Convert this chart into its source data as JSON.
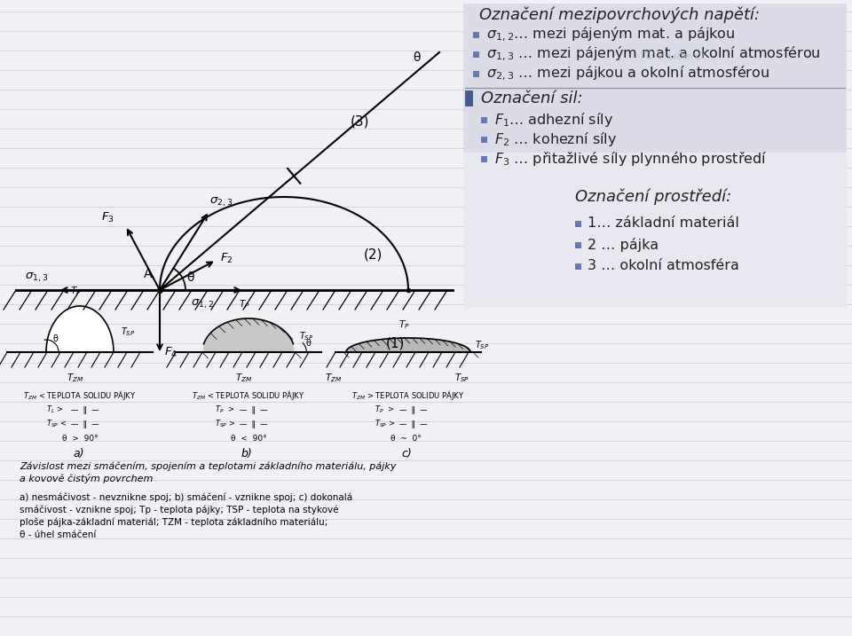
{
  "bg_color": "#f0f0f5",
  "text_color": "#222222",
  "bullet_color": "#6a7ab0",
  "panel_bg": "#e8e8f0",
  "sigma_bg": "#dcdce8",
  "watermark": "TU v Liberci",
  "title1": "Označení mezipovrchových napětí:",
  "line1_1": "σ₁,₂… mezi pájeným mat. a pájkou",
  "line1_2": "σ₁,₃ … mezi pájeným mat. a okolní atmosférou",
  "line1_3": "σ₂,₃ … mezi pájkou a okolní atmosférou",
  "title2": "Označení sil:",
  "line2_1": "F₁… adhezní síly",
  "line2_2": "F₂ … kohezní síly",
  "line2_3": "F₃ … přitažlivé síly plynného prostředí",
  "title3": "Označení prostředí:",
  "line3_1": "1… základní materiál",
  "line3_2": "2 … pájka",
  "line3_3": "3 … okolní atmosféra",
  "cap1": "Závislost mezi smáčením, spojením a teplotami základního materiálu, pájky",
  "cap2": "a kovově čistým povrchem",
  "cap3": "a) nesmáčivost - nevznikne spoj; b) smáčení - vznikne spoj; c) dokonalá",
  "cap4": "smáčivost - vznikne spoj; Tp - teplota pájky; TSP - teplota na stykové",
  "cap5": "ploše pájka-základní materiál; TZM - teplota základního materiálu;",
  "cap6": "θ - úhel smáčení"
}
